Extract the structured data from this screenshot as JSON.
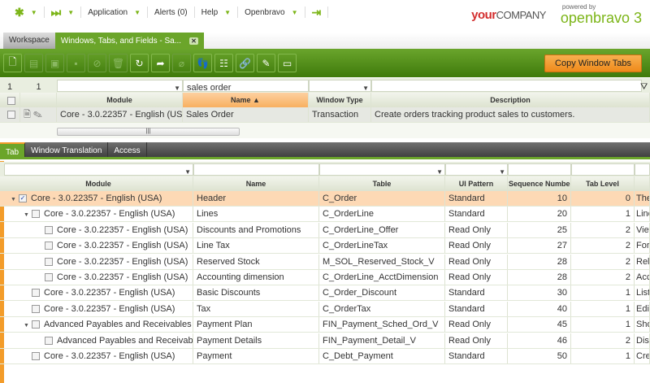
{
  "nav": {
    "items": [
      "Application",
      "Alerts (0)",
      "Help",
      "Openbravo"
    ]
  },
  "brand": {
    "your": "your",
    "company": "COMPANY",
    "powered": "powered by",
    "ob": "openbravo 3"
  },
  "window_tabs": {
    "workspace": "Workspace",
    "active": "Windows, Tabs, and Fields - Sa..."
  },
  "toolbar": {
    "icons": [
      "new-document",
      "new-row",
      "save",
      "undo-delete",
      "cancel",
      "delete",
      "refresh",
      "export",
      "attachment",
      "audit-trail",
      "tree",
      "link",
      "tools",
      "grid-view"
    ],
    "copy_label": "Copy Window Tabs"
  },
  "top_grid": {
    "counts": [
      "1",
      "1"
    ],
    "filter_name": "sales order",
    "headers": [
      "Module",
      "Name ▲",
      "Window Type",
      "Description"
    ],
    "row": [
      "Core - 3.0.22357 - English (USA)",
      "Sales Order",
      "Transaction",
      "Create orders tracking product sales to customers."
    ]
  },
  "sub_tabs": [
    "Tab",
    "Window Translation",
    "Access"
  ],
  "bottom_grid": {
    "headers": [
      "Module",
      "Name",
      "Table",
      "UI Pattern",
      "Sequence Number",
      "Tab Level",
      ""
    ],
    "rows": [
      {
        "indent": 0,
        "exp": true,
        "checked": true,
        "module": "Core - 3.0.22357 - English (USA)",
        "name": "Header",
        "table": "C_Order",
        "ui": "Standard",
        "seq": "10",
        "level": "0",
        "desc": "The"
      },
      {
        "indent": 1,
        "exp": true,
        "checked": false,
        "module": "Core - 3.0.22357 - English (USA)",
        "name": "Lines",
        "table": "C_OrderLine",
        "ui": "Standard",
        "seq": "20",
        "level": "1",
        "desc": "Line"
      },
      {
        "indent": 2,
        "exp": false,
        "checked": false,
        "module": "Core - 3.0.22357 - English (USA)",
        "name": "Discounts and Promotions",
        "table": "C_OrderLine_Offer",
        "ui": "Read Only",
        "seq": "25",
        "level": "2",
        "desc": "View"
      },
      {
        "indent": 2,
        "exp": false,
        "checked": false,
        "module": "Core - 3.0.22357 - English (USA)",
        "name": "Line Tax",
        "table": "C_OrderLineTax",
        "ui": "Read Only",
        "seq": "27",
        "level": "2",
        "desc": "For"
      },
      {
        "indent": 2,
        "exp": false,
        "checked": false,
        "module": "Core - 3.0.22357 - English (USA)",
        "name": "Reserved Stock",
        "table": "M_SOL_Reserved_Stock_V",
        "ui": "Read Only",
        "seq": "28",
        "level": "2",
        "desc": "Rela"
      },
      {
        "indent": 2,
        "exp": false,
        "checked": false,
        "module": "Core - 3.0.22357 - English (USA)",
        "name": "Accounting dimension",
        "table": "C_OrderLine_AcctDimension",
        "ui": "Read Only",
        "seq": "28",
        "level": "2",
        "desc": "Acc"
      },
      {
        "indent": 1,
        "exp": false,
        "checked": false,
        "module": "Core - 3.0.22357 - English (USA)",
        "name": "Basic Discounts",
        "table": "C_Order_Discount",
        "ui": "Standard",
        "seq": "30",
        "level": "1",
        "desc": "List"
      },
      {
        "indent": 1,
        "exp": false,
        "checked": false,
        "module": "Core - 3.0.22357 - English (USA)",
        "name": "Tax",
        "table": "C_OrderTax",
        "ui": "Standard",
        "seq": "40",
        "level": "1",
        "desc": "Edit"
      },
      {
        "indent": 1,
        "exp": true,
        "checked": false,
        "module": "Advanced Payables and Receivables Mngr",
        "name": "Payment Plan",
        "table": "FIN_Payment_Sched_Ord_V",
        "ui": "Read Only",
        "seq": "45",
        "level": "1",
        "desc": "Sho"
      },
      {
        "indent": 2,
        "exp": false,
        "checked": false,
        "module": "Advanced Payables and Receivables Mngr",
        "name": "Payment Details",
        "table": "FIN_Payment_Detail_V",
        "ui": "Read Only",
        "seq": "46",
        "level": "2",
        "desc": "Disp"
      },
      {
        "indent": 1,
        "exp": false,
        "checked": false,
        "module": "Core - 3.0.22357 - English (USA)",
        "name": "Payment",
        "table": "C_Debt_Payment",
        "ui": "Standard",
        "seq": "50",
        "level": "1",
        "desc": "Cre"
      }
    ]
  },
  "colors": {
    "green": "#6ba52a",
    "orange": "#f39c2a",
    "selected_row": "#fdd9b5"
  }
}
